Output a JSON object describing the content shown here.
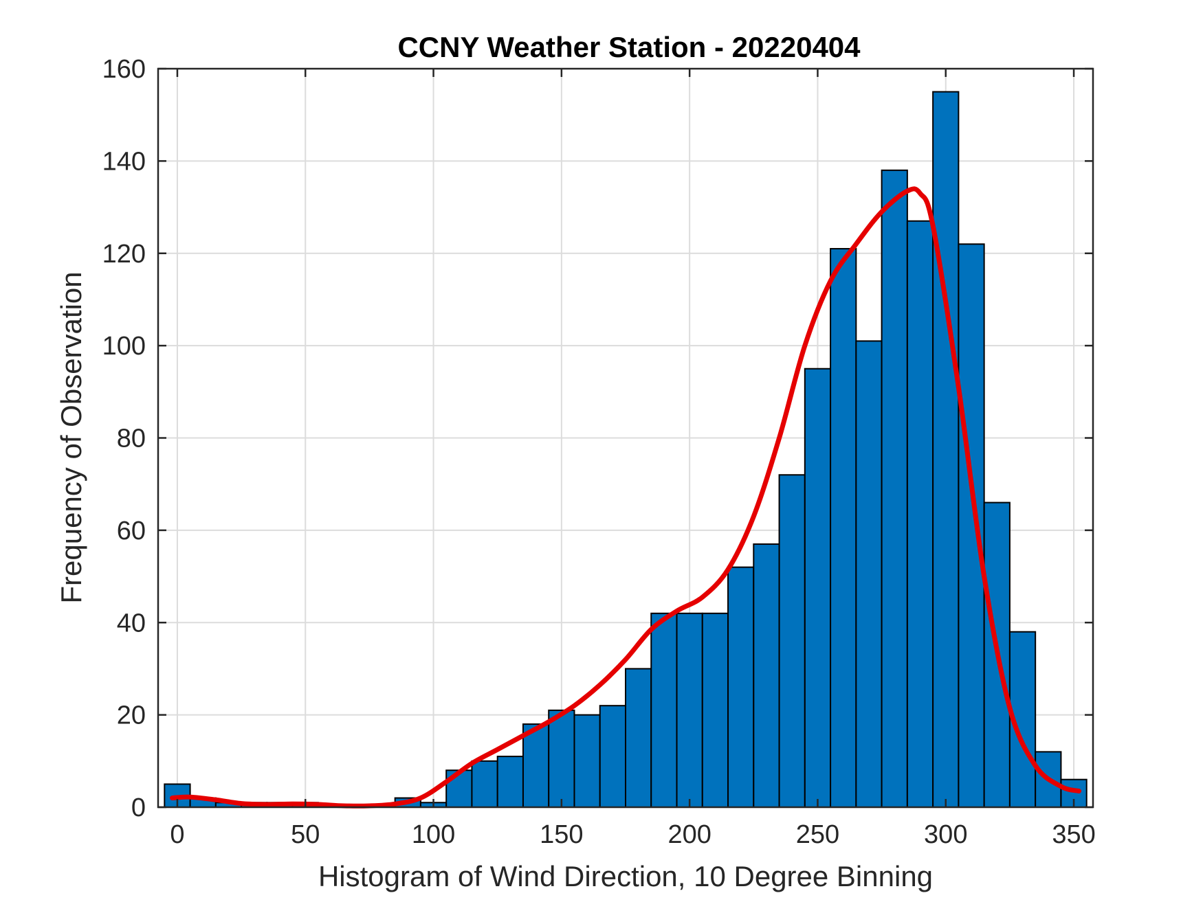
{
  "chart_data": {
    "type": "bar",
    "title": "CCNY Weather Station - 20220404",
    "xlabel": "Histogram of Wind Direction, 10 Degree Binning",
    "ylabel": "Frequency of Observation",
    "xlim": [
      -7.5,
      357.5
    ],
    "ylim": [
      0,
      160
    ],
    "xticks": [
      0,
      50,
      100,
      150,
      200,
      250,
      300,
      350
    ],
    "yticks": [
      0,
      20,
      40,
      60,
      80,
      100,
      120,
      140,
      160
    ],
    "grid": true,
    "bin_width": 10,
    "bins": [
      {
        "x": 0,
        "count": 5
      },
      {
        "x": 10,
        "count": 2
      },
      {
        "x": 20,
        "count": 1
      },
      {
        "x": 30,
        "count": 1
      },
      {
        "x": 40,
        "count": 1
      },
      {
        "x": 50,
        "count": 1
      },
      {
        "x": 60,
        "count": 0
      },
      {
        "x": 70,
        "count": 0
      },
      {
        "x": 80,
        "count": 0
      },
      {
        "x": 90,
        "count": 2
      },
      {
        "x": 100,
        "count": 1
      },
      {
        "x": 110,
        "count": 8
      },
      {
        "x": 120,
        "count": 10
      },
      {
        "x": 130,
        "count": 11
      },
      {
        "x": 140,
        "count": 18
      },
      {
        "x": 150,
        "count": 21
      },
      {
        "x": 160,
        "count": 20
      },
      {
        "x": 170,
        "count": 22
      },
      {
        "x": 180,
        "count": 30
      },
      {
        "x": 190,
        "count": 42
      },
      {
        "x": 200,
        "count": 42
      },
      {
        "x": 210,
        "count": 42
      },
      {
        "x": 220,
        "count": 52
      },
      {
        "x": 230,
        "count": 57
      },
      {
        "x": 240,
        "count": 72
      },
      {
        "x": 250,
        "count": 95
      },
      {
        "x": 260,
        "count": 121
      },
      {
        "x": 270,
        "count": 101
      },
      {
        "x": 280,
        "count": 138
      },
      {
        "x": 290,
        "count": 127
      },
      {
        "x": 300,
        "count": 155
      },
      {
        "x": 310,
        "count": 122
      },
      {
        "x": 320,
        "count": 66
      },
      {
        "x": 330,
        "count": 38
      },
      {
        "x": 340,
        "count": 12
      },
      {
        "x": 350,
        "count": 6
      }
    ],
    "density_curve": {
      "x": [
        -2,
        5,
        15,
        25,
        35,
        45,
        55,
        65,
        75,
        85,
        95,
        105,
        115,
        125,
        135,
        145,
        155,
        165,
        175,
        185,
        195,
        205,
        215,
        225,
        235,
        245,
        255,
        265,
        275,
        285,
        290,
        295,
        305,
        315,
        325,
        335,
        345,
        352
      ],
      "y": [
        2,
        2.2,
        1.6,
        0.8,
        0.6,
        0.7,
        0.6,
        0.3,
        0.3,
        0.7,
        2,
        5.5,
        9.5,
        12.5,
        15.5,
        18.5,
        22,
        26.5,
        32,
        38.5,
        42.5,
        45.5,
        51.5,
        63,
        80,
        100,
        114,
        122,
        129,
        133.5,
        133,
        126,
        91,
        50,
        21.5,
        9,
        4.5,
        3.5
      ]
    },
    "colors": {
      "bar_fill": "#0072BD",
      "bar_edge": "#000000",
      "curve": "#E50000",
      "grid": "#DCDCDC",
      "axes": "#262626"
    }
  }
}
